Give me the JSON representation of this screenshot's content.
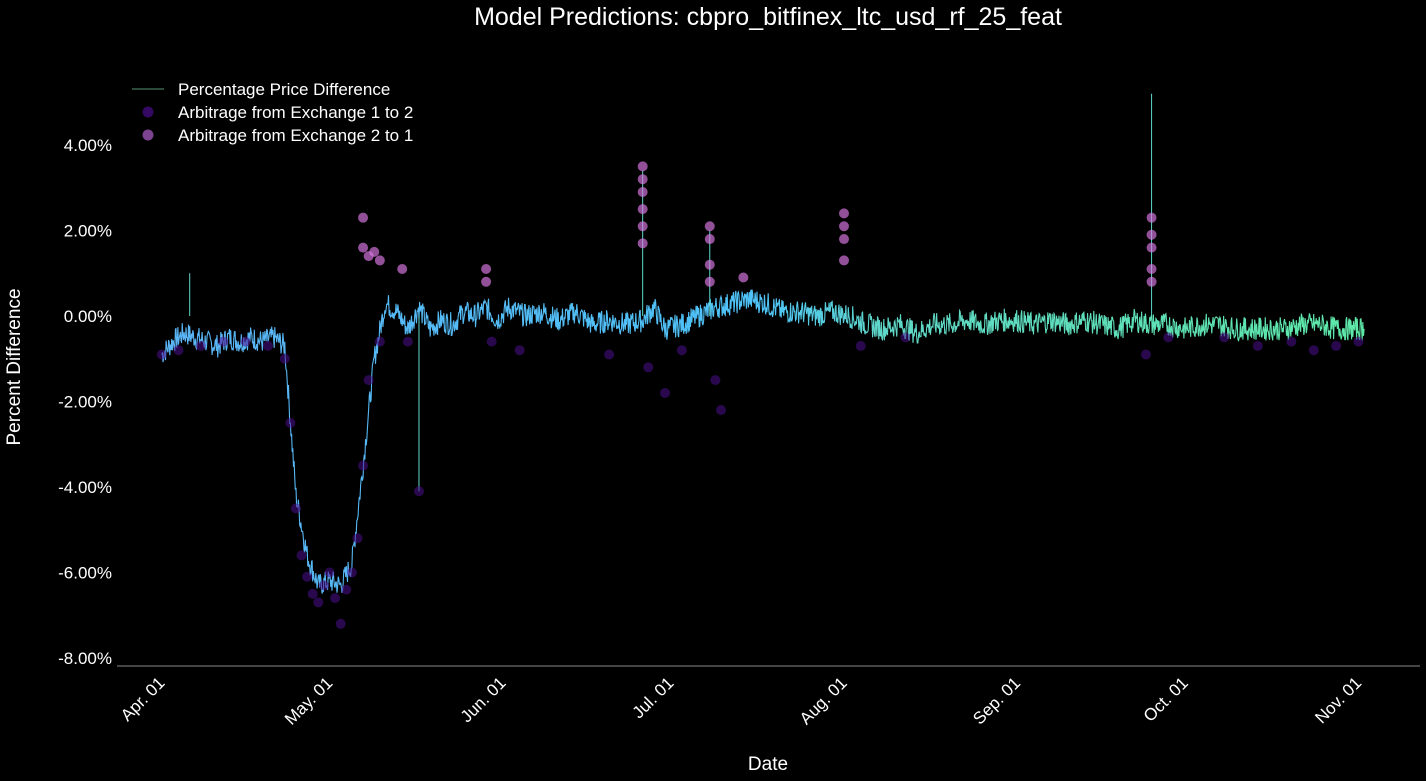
{
  "chart_data": {
    "type": "line",
    "title": "Model Predictions: cbpro_bitfinex_ltc_usd_rf_25_feat",
    "xlabel": "Date",
    "ylabel": "Percent Difference",
    "ylim": [
      -8.2,
      5.5
    ],
    "y_ticks": [
      "4.00%",
      "2.00%",
      "0.00%",
      "-2.00%",
      "-4.00%",
      "-6.00%",
      "-8.00%"
    ],
    "y_tick_values": [
      4,
      2,
      0,
      -2,
      -4,
      -6,
      -8
    ],
    "x_ticks": [
      "Apr. 01",
      "May. 01",
      "Jun. 01",
      "Jul. 01",
      "Aug. 01",
      "Sep. 01",
      "Oct. 01",
      "Nov. 01"
    ],
    "x_tick_values": [
      "2018-04-01",
      "2018-05-01",
      "2018-06-01",
      "2018-07-01",
      "2018-08-01",
      "2018-09-01",
      "2018-10-01",
      "2018-11-01"
    ],
    "xlim": [
      "2018-03-24",
      "2018-11-12"
    ],
    "grid": false,
    "legend_position": "top-left",
    "colors": {
      "background": "#000000",
      "line_start": "#5ab4f5",
      "line_mid": "#4fc3f7",
      "line_end": "#5ee8a8",
      "arb_1_to_2": "#4b0e8c",
      "arb_2_to_1": "#e07bea",
      "axis": "#888888"
    },
    "series": [
      {
        "name": "Percentage Price Difference",
        "kind": "line",
        "x": [
          "2018-04-01",
          "2018-04-03",
          "2018-04-05",
          "2018-04-07",
          "2018-04-09",
          "2018-04-11",
          "2018-04-13",
          "2018-04-15",
          "2018-04-17",
          "2018-04-19",
          "2018-04-21",
          "2018-04-23",
          "2018-04-25",
          "2018-04-27",
          "2018-04-29",
          "2018-05-01",
          "2018-05-03",
          "2018-05-05",
          "2018-05-07",
          "2018-05-09",
          "2018-05-11",
          "2018-05-13",
          "2018-05-15",
          "2018-05-17",
          "2018-05-19",
          "2018-05-21",
          "2018-05-23",
          "2018-05-25",
          "2018-05-27",
          "2018-05-29",
          "2018-05-31",
          "2018-06-02",
          "2018-06-05",
          "2018-06-08",
          "2018-06-11",
          "2018-06-14",
          "2018-06-17",
          "2018-06-20",
          "2018-06-23",
          "2018-06-26",
          "2018-06-28",
          "2018-06-30",
          "2018-07-03",
          "2018-07-06",
          "2018-07-09",
          "2018-07-12",
          "2018-07-15",
          "2018-07-18",
          "2018-07-21",
          "2018-07-24",
          "2018-07-27",
          "2018-07-30",
          "2018-08-02",
          "2018-08-05",
          "2018-08-08",
          "2018-08-11",
          "2018-08-14",
          "2018-08-17",
          "2018-08-20",
          "2018-08-23",
          "2018-08-26",
          "2018-08-29",
          "2018-09-01",
          "2018-09-04",
          "2018-09-07",
          "2018-09-10",
          "2018-09-13",
          "2018-09-16",
          "2018-09-19",
          "2018-09-22",
          "2018-09-25",
          "2018-09-28",
          "2018-10-01",
          "2018-10-04",
          "2018-10-07",
          "2018-10-10",
          "2018-10-13",
          "2018-10-16",
          "2018-10-19",
          "2018-10-22",
          "2018-10-25",
          "2018-10-28",
          "2018-10-31",
          "2018-11-02"
        ],
        "values": [
          -0.9,
          -0.6,
          -0.4,
          -0.5,
          -0.6,
          -0.7,
          -0.5,
          -0.6,
          -0.5,
          -0.6,
          -0.5,
          -0.7,
          -4.2,
          -5.6,
          -6.3,
          -6.2,
          -6.3,
          -5.8,
          -3.5,
          -1.0,
          0.3,
          0.1,
          -0.3,
          0.2,
          -0.3,
          -0.1,
          -0.2,
          0.1,
          0.0,
          0.2,
          -0.1,
          0.2,
          0.0,
          0.1,
          -0.1,
          0.1,
          -0.2,
          -0.1,
          -0.2,
          -0.1,
          0.2,
          -0.3,
          -0.2,
          0.0,
          0.2,
          0.3,
          0.4,
          0.3,
          0.1,
          0.1,
          0.0,
          0.1,
          0.0,
          -0.2,
          -0.3,
          -0.2,
          -0.4,
          -0.2,
          -0.2,
          -0.1,
          -0.2,
          -0.1,
          -0.1,
          -0.2,
          -0.1,
          -0.2,
          -0.1,
          -0.2,
          -0.3,
          -0.1,
          -0.2,
          -0.2,
          -0.3,
          -0.2,
          -0.2,
          -0.3,
          -0.3,
          -0.3,
          -0.3,
          -0.2,
          -0.2,
          -0.3,
          -0.3,
          -0.3
        ]
      },
      {
        "name": "Arbitrage from Exchange 1 to 2",
        "kind": "scatter",
        "x": [
          "2018-04-01",
          "2018-04-04",
          "2018-04-08",
          "2018-04-12",
          "2018-04-16",
          "2018-04-20",
          "2018-04-23",
          "2018-04-24",
          "2018-04-25",
          "2018-04-26",
          "2018-04-27",
          "2018-04-28",
          "2018-04-29",
          "2018-04-30",
          "2018-05-01",
          "2018-05-02",
          "2018-05-03",
          "2018-05-04",
          "2018-05-05",
          "2018-05-06",
          "2018-05-07",
          "2018-05-08",
          "2018-05-10",
          "2018-05-15",
          "2018-05-17",
          "2018-05-30",
          "2018-06-04",
          "2018-06-20",
          "2018-06-27",
          "2018-06-30",
          "2018-07-03",
          "2018-07-09",
          "2018-07-10",
          "2018-08-04",
          "2018-08-12",
          "2018-09-24",
          "2018-09-28",
          "2018-10-08",
          "2018-10-14",
          "2018-10-20",
          "2018-10-24",
          "2018-10-28",
          "2018-11-01"
        ],
        "values": [
          -0.9,
          -0.8,
          -0.7,
          -0.6,
          -0.6,
          -0.7,
          -1.0,
          -2.5,
          -4.5,
          -5.6,
          -6.1,
          -6.5,
          -6.7,
          -6.3,
          -6.0,
          -6.6,
          -7.2,
          -6.4,
          -6.0,
          -5.2,
          -3.5,
          -1.5,
          -0.6,
          -0.6,
          -4.1,
          -0.6,
          -0.8,
          -0.9,
          -1.2,
          -1.8,
          -0.8,
          -1.5,
          -2.2,
          -0.7,
          -0.5,
          -0.9,
          -0.5,
          -0.5,
          -0.7,
          -0.6,
          -0.8,
          -0.7,
          -0.6
        ]
      },
      {
        "name": "Arbitrage from Exchange 2 to 1",
        "kind": "scatter",
        "x": [
          "2018-05-07",
          "2018-05-07",
          "2018-05-08",
          "2018-05-09",
          "2018-05-10",
          "2018-05-14",
          "2018-05-29",
          "2018-05-29",
          "2018-06-26",
          "2018-06-26",
          "2018-06-26",
          "2018-06-26",
          "2018-06-26",
          "2018-06-26",
          "2018-07-08",
          "2018-07-08",
          "2018-07-08",
          "2018-07-08",
          "2018-07-14",
          "2018-08-01",
          "2018-08-01",
          "2018-08-01",
          "2018-08-01",
          "2018-09-25",
          "2018-09-25",
          "2018-09-25",
          "2018-09-25",
          "2018-09-25"
        ],
        "values": [
          2.3,
          1.6,
          1.4,
          1.5,
          1.3,
          1.1,
          1.1,
          0.8,
          3.5,
          3.2,
          2.9,
          2.5,
          2.1,
          1.7,
          2.1,
          1.8,
          1.2,
          0.8,
          0.9,
          2.4,
          2.1,
          1.8,
          1.3,
          2.3,
          1.9,
          1.6,
          1.1,
          0.8
        ]
      }
    ]
  }
}
